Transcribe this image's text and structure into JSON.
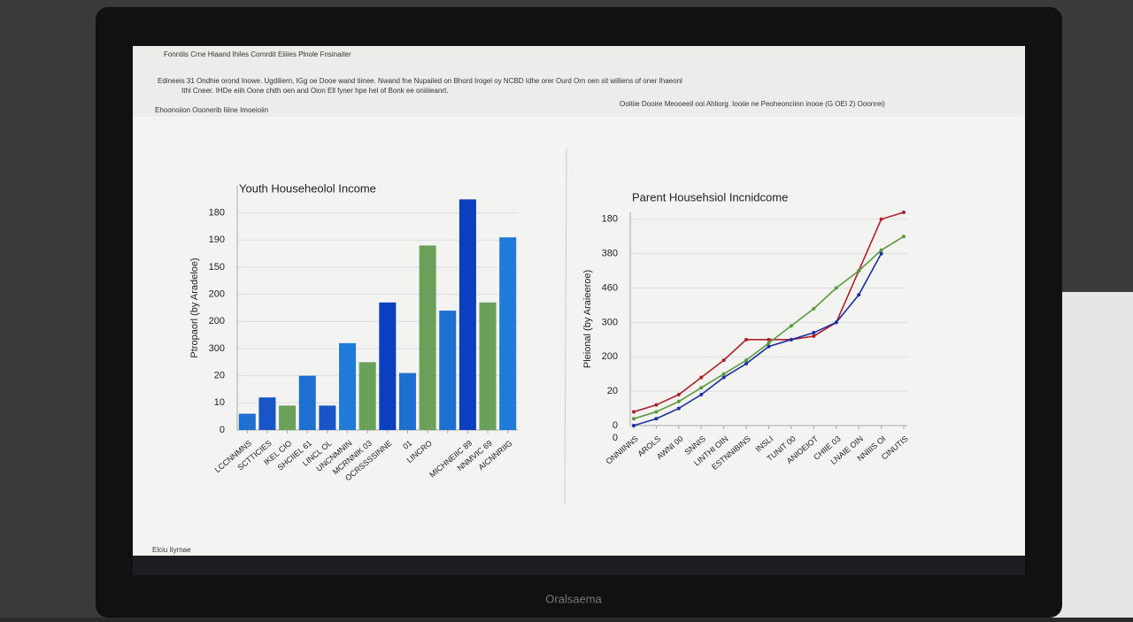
{
  "ui": {
    "menu": "Fonntiis Crne Hiaand Ihiles Cornrdit Eiiiies Plnole Fnsinaiter",
    "toolbar_line1": "Edineeis 31 Ondhie orond Inowe. Ugdiliern, IGg oe Dooe wand tiinee. Nwand fne Nupailed on Bhord Irogel oy NCBD Idhe orer Ourd Orn oen sit wiiliens of oner Ihaeonl",
    "toolbar_line2": "Ithl Cneer. IHDe eiih Oone chith oen and Oion Ell fyner hpe hel of Bonk ee oniiiieanrt.",
    "breadcrumb": "Ehoonoiion Ooonerib Iiiine Imoeioiin",
    "tab": "Ooitiie Dooire Meooeeil ooi Ahliorg. Iooiie ne Peoheonciinn inooe (G OEI 2) Ooonrei)",
    "status": "Elciu Iiyrnae",
    "brand": "Oralsaema"
  },
  "chart_data": [
    {
      "type": "bar",
      "title": "Youth Househeolol Income",
      "y_label": "Ptropaorl (by Aradeloe)",
      "categories": [
        "LCCNNMNS",
        "SCTTICIES",
        "IKEL CIO",
        "SHCIIEL 61",
        "LINCL OL",
        "UNCNMNIN",
        "MCRNNIK 03",
        "OCRSSSSINNE",
        "01",
        "LINCRO",
        null,
        "MICHNEIIC 89",
        "NNMVIC 69",
        "AICNNRIIG"
      ],
      "values": [
        6,
        12,
        9,
        20,
        9,
        32,
        25,
        47,
        21,
        68,
        44,
        85,
        47,
        71
      ],
      "colors": [
        "#1f6fd1",
        "#1a55c8",
        "#6aa05a",
        "#1f6fd1",
        "#1a55c8",
        "#1f7ad8",
        "#6aa05a",
        "#0a3fc0",
        "#1f6fd1",
        "#6aa05a",
        "#1f6fd1",
        "#0a3fc0",
        "#6aa05a",
        "#1f7ad8"
      ],
      "ylim": [
        0,
        90
      ],
      "yticks": [
        0,
        10,
        20,
        {
          "value": 30,
          "label": "300"
        },
        {
          "value": 40,
          "label": "200"
        },
        {
          "value": 50,
          "label": "200"
        },
        {
          "value": 60,
          "label": "150"
        },
        {
          "value": 70,
          "label": "190"
        },
        {
          "value": 80,
          "label": "180"
        }
      ],
      "grid": true
    },
    {
      "type": "line",
      "title": "Parent Househsiol Incnidcome",
      "y_label": "Pleional (by Araieeroe)",
      "categories": [
        "ONNIINNS",
        "AROLS",
        "AWNI 00",
        "SNNIS",
        "LINTHI OIN",
        "ESTNNIBINS",
        "INSLI",
        "TUNIT 00",
        "ANIOEIOT",
        "CHIIE 03",
        "LNAIE OIN",
        "NNIIIS OI",
        "CINUTIS"
      ],
      "series": [
        {
          "color": "#b0202a",
          "values": [
            4,
            6,
            9,
            14,
            19,
            25,
            25,
            25,
            26,
            30,
            45,
            60,
            62
          ]
        },
        {
          "color": "#5a9a3a",
          "values": [
            2,
            4,
            7,
            11,
            15,
            19,
            24,
            29,
            34,
            40,
            45,
            51,
            55
          ]
        },
        {
          "color": "#1a2fa0",
          "values": [
            0,
            2,
            5,
            9,
            14,
            18,
            23,
            25,
            27,
            30,
            38,
            50,
            null
          ]
        }
      ],
      "ylim": [
        0,
        62
      ],
      "yticks": [
        0,
        {
          "value": 10,
          "label": "20"
        },
        {
          "value": 20,
          "label": "200"
        },
        {
          "value": 30,
          "label": "300"
        },
        {
          "value": 40,
          "label": "460"
        },
        {
          "value": 50,
          "label": "380"
        },
        {
          "value": 60,
          "label": "180"
        }
      ],
      "annotations": [
        "0"
      ],
      "grid": true
    }
  ]
}
